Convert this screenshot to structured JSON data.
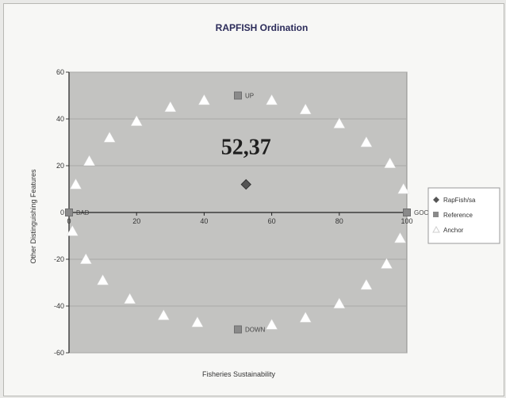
{
  "chart_data": {
    "type": "scatter",
    "title": "RAPFISH Ordination",
    "xlabel": "Fisheries Sustainability",
    "ylabel": "Other Distinguishing Features",
    "xlim": [
      0,
      100
    ],
    "ylim": [
      -60,
      60
    ],
    "xticks": [
      "0",
      "20",
      "40",
      "60",
      "80",
      "100"
    ],
    "yticks": [
      "60",
      "40",
      "20",
      "0",
      "-20",
      "-40",
      "-60"
    ],
    "annotation": "52,37",
    "legend": [
      "RapFish/sa",
      "Reference",
      "Anchor"
    ],
    "legend_position": "right",
    "colors": {
      "plot_bg": "#c3c3c1",
      "rapfish": "#555555",
      "reference": "#8a8a8a",
      "anchor": "#ffffff"
    },
    "series": [
      {
        "name": "RapFish/sa",
        "marker": "diamond",
        "points": [
          [
            52.4,
            12
          ]
        ]
      },
      {
        "name": "Reference",
        "marker": "square",
        "points": [
          {
            "x": 50,
            "y": 50,
            "label": "UP"
          },
          {
            "x": 0,
            "y": 0,
            "label": "BAD"
          },
          {
            "x": 100,
            "y": 0,
            "label": "GOOD"
          },
          {
            "x": 50,
            "y": -50,
            "label": "DOWN"
          }
        ]
      },
      {
        "name": "Anchor",
        "marker": "triangle",
        "points": [
          [
            2,
            12
          ],
          [
            6,
            22
          ],
          [
            12,
            32
          ],
          [
            20,
            39
          ],
          [
            30,
            45
          ],
          [
            40,
            48
          ],
          [
            60,
            48
          ],
          [
            70,
            44
          ],
          [
            80,
            38
          ],
          [
            88,
            30
          ],
          [
            95,
            21
          ],
          [
            99,
            10
          ],
          [
            1,
            -8
          ],
          [
            5,
            -20
          ],
          [
            10,
            -29
          ],
          [
            18,
            -37
          ],
          [
            28,
            -44
          ],
          [
            38,
            -47
          ],
          [
            60,
            -48
          ],
          [
            70,
            -45
          ],
          [
            80,
            -39
          ],
          [
            88,
            -31
          ],
          [
            94,
            -22
          ],
          [
            98,
            -11
          ]
        ]
      }
    ]
  }
}
